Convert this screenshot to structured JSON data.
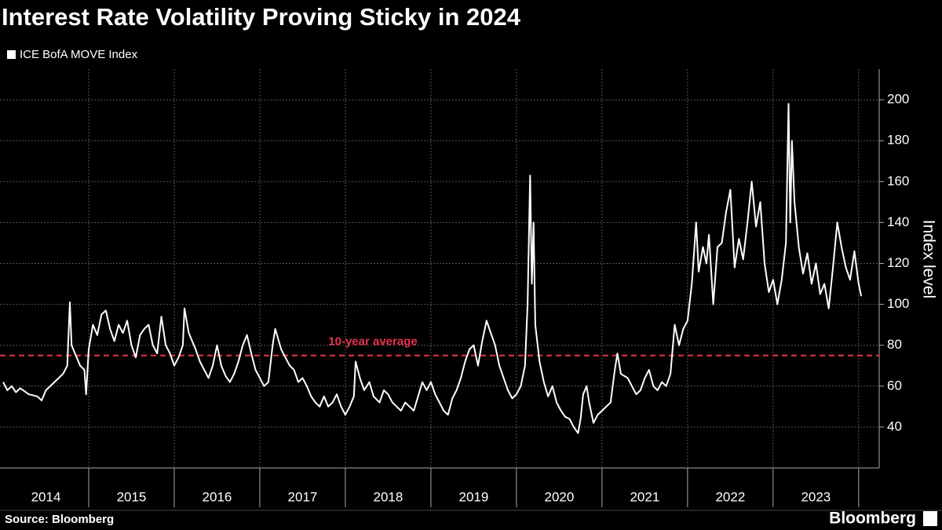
{
  "chart_data": {
    "type": "line",
    "title": "Interest Rate Volatility Proving Sticky in 2024",
    "y_label": "Index level",
    "source": "Source: Bloomberg",
    "brand": "Bloomberg",
    "annotation": {
      "text": "10-year average",
      "value": 75,
      "color": "#e8334f"
    },
    "xlim": [
      2014,
      2024.24
    ],
    "xticks": [
      {
        "value": 2014.5,
        "label": "2014"
      },
      {
        "value": 2015.5,
        "label": "2015"
      },
      {
        "value": 2016.5,
        "label": "2016"
      },
      {
        "value": 2017.5,
        "label": "2017"
      },
      {
        "value": 2018.5,
        "label": "2018"
      },
      {
        "value": 2019.5,
        "label": "2019"
      },
      {
        "value": 2020.5,
        "label": "2020"
      },
      {
        "value": 2021.5,
        "label": "2021"
      },
      {
        "value": 2022.5,
        "label": "2022"
      },
      {
        "value": 2023.5,
        "label": "2023"
      }
    ],
    "x_grid": [
      2015,
      2016,
      2017,
      2018,
      2019,
      2020,
      2021,
      2022,
      2023,
      2024
    ],
    "ylim": [
      20,
      215
    ],
    "yticks": [
      40,
      60,
      80,
      100,
      120,
      140,
      160,
      180,
      200
    ],
    "grid": true,
    "legend": "top-left",
    "x": [
      2014.0,
      2014.05,
      2014.1,
      2014.15,
      2014.2,
      2014.3,
      2014.4,
      2014.45,
      2014.5,
      2014.6,
      2014.7,
      2014.75,
      2014.78,
      2014.8,
      2014.85,
      2014.9,
      2014.95,
      2014.97,
      2015.0,
      2015.05,
      2015.1,
      2015.15,
      2015.2,
      2015.25,
      2015.3,
      2015.35,
      2015.4,
      2015.45,
      2015.5,
      2015.55,
      2015.6,
      2015.65,
      2015.7,
      2015.75,
      2015.8,
      2015.85,
      2015.9,
      2015.95,
      2016.0,
      2016.05,
      2016.1,
      2016.12,
      2016.17,
      2016.25,
      2016.3,
      2016.35,
      2016.4,
      2016.45,
      2016.5,
      2016.55,
      2016.6,
      2016.65,
      2016.7,
      2016.75,
      2016.8,
      2016.85,
      2016.9,
      2016.95,
      2017.0,
      2017.05,
      2017.1,
      2017.15,
      2017.18,
      2017.25,
      2017.3,
      2017.35,
      2017.4,
      2017.45,
      2017.5,
      2017.55,
      2017.6,
      2017.65,
      2017.7,
      2017.75,
      2017.8,
      2017.85,
      2017.9,
      2017.95,
      2018.0,
      2018.05,
      2018.1,
      2018.12,
      2018.17,
      2018.22,
      2018.28,
      2018.33,
      2018.4,
      2018.45,
      2018.5,
      2018.55,
      2018.6,
      2018.65,
      2018.7,
      2018.75,
      2018.8,
      2018.85,
      2018.9,
      2018.95,
      2019.0,
      2019.05,
      2019.1,
      2019.15,
      2019.2,
      2019.25,
      2019.3,
      2019.35,
      2019.4,
      2019.45,
      2019.5,
      2019.55,
      2019.6,
      2019.65,
      2019.7,
      2019.75,
      2019.8,
      2019.85,
      2019.9,
      2019.95,
      2020.0,
      2020.05,
      2020.1,
      2020.13,
      2020.16,
      2020.18,
      2020.2,
      2020.22,
      2020.27,
      2020.32,
      2020.37,
      2020.42,
      2020.47,
      2020.52,
      2020.57,
      2020.62,
      2020.67,
      2020.72,
      2020.75,
      2020.78,
      2020.82,
      2020.85,
      2020.9,
      2020.95,
      2021.0,
      2021.05,
      2021.1,
      2021.15,
      2021.18,
      2021.22,
      2021.3,
      2021.35,
      2021.4,
      2021.45,
      2021.5,
      2021.55,
      2021.6,
      2021.65,
      2021.7,
      2021.75,
      2021.8,
      2021.85,
      2021.9,
      2021.95,
      2022.0,
      2022.05,
      2022.1,
      2022.13,
      2022.18,
      2022.22,
      2022.25,
      2022.3,
      2022.35,
      2022.4,
      2022.45,
      2022.5,
      2022.55,
      2022.6,
      2022.65,
      2022.7,
      2022.75,
      2022.8,
      2022.85,
      2022.9,
      2022.95,
      2023.0,
      2023.05,
      2023.1,
      2023.15,
      2023.18,
      2023.2,
      2023.22,
      2023.25,
      2023.3,
      2023.35,
      2023.4,
      2023.45,
      2023.5,
      2023.55,
      2023.6,
      2023.65,
      2023.7,
      2023.75,
      2023.8,
      2023.85,
      2023.9,
      2023.95,
      2024.0,
      2024.03
    ],
    "series": [
      {
        "name": "ICE BofA MOVE Index",
        "color": "#ffffff",
        "values": [
          62,
          58,
          60,
          57,
          59,
          56,
          55,
          53,
          58,
          62,
          66,
          70,
          101,
          80,
          75,
          70,
          68,
          56,
          78,
          90,
          85,
          95,
          97,
          88,
          82,
          90,
          86,
          92,
          80,
          74,
          85,
          88,
          90,
          80,
          76,
          94,
          80,
          76,
          70,
          74,
          80,
          98,
          86,
          78,
          72,
          68,
          64,
          70,
          80,
          70,
          65,
          62,
          66,
          72,
          80,
          85,
          76,
          68,
          64,
          60,
          62,
          80,
          88,
          78,
          74,
          70,
          68,
          62,
          64,
          60,
          55,
          52,
          50,
          55,
          50,
          52,
          56,
          50,
          46,
          50,
          55,
          72,
          64,
          58,
          62,
          55,
          52,
          58,
          56,
          52,
          50,
          48,
          52,
          50,
          48,
          55,
          62,
          58,
          62,
          56,
          52,
          48,
          46,
          54,
          58,
          64,
          72,
          78,
          80,
          70,
          82,
          92,
          86,
          80,
          70,
          64,
          58,
          54,
          56,
          60,
          70,
          100,
          163,
          110,
          140,
          90,
          72,
          62,
          55,
          60,
          52,
          48,
          45,
          44,
          40,
          37,
          44,
          56,
          60,
          52,
          42,
          46,
          48,
          50,
          52,
          68,
          76,
          66,
          64,
          60,
          56,
          58,
          64,
          68,
          60,
          58,
          62,
          60,
          66,
          90,
          80,
          88,
          92,
          110,
          140,
          116,
          128,
          120,
          134,
          100,
          128,
          130,
          145,
          156,
          118,
          132,
          122,
          140,
          160,
          138,
          150,
          120,
          106,
          112,
          100,
          112,
          130,
          198,
          140,
          180,
          150,
          128,
          115,
          125,
          110,
          120,
          105,
          110,
          98,
          118,
          140,
          128,
          118,
          112,
          126,
          110,
          104
        ]
      }
    ]
  }
}
